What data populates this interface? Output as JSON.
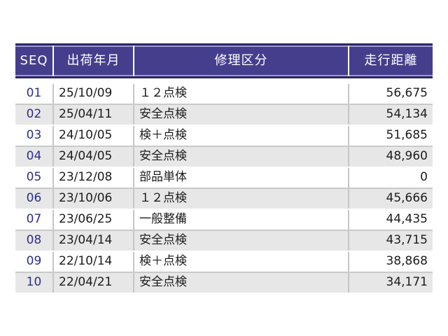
{
  "table": {
    "title": "repair-history",
    "columns": [
      {
        "key": "seq",
        "label": "SEQ"
      },
      {
        "key": "ship_date",
        "label": "出荷年月"
      },
      {
        "key": "repair_type",
        "label": "修理区分"
      },
      {
        "key": "mileage",
        "label": "走行距離"
      }
    ],
    "rows": [
      {
        "seq": "01",
        "ship_date": "25/10/09",
        "repair_type": "１２点検",
        "mileage": "56,675"
      },
      {
        "seq": "02",
        "ship_date": "25/04/11",
        "repair_type": "安全点検",
        "mileage": "54,134"
      },
      {
        "seq": "03",
        "ship_date": "24/10/05",
        "repair_type": "検＋点検",
        "mileage": "51,685"
      },
      {
        "seq": "04",
        "ship_date": "24/04/05",
        "repair_type": "安全点検",
        "mileage": "48,960"
      },
      {
        "seq": "05",
        "ship_date": "23/12/08",
        "repair_type": "部品単体",
        "mileage": "0"
      },
      {
        "seq": "06",
        "ship_date": "23/10/06",
        "repair_type": "１２点検",
        "mileage": "45,666"
      },
      {
        "seq": "07",
        "ship_date": "23/06/25",
        "repair_type": "一般整備",
        "mileage": "44,435"
      },
      {
        "seq": "08",
        "ship_date": "23/04/14",
        "repair_type": "安全点検",
        "mileage": "43,715"
      },
      {
        "seq": "09",
        "ship_date": "22/10/14",
        "repair_type": "検＋点検",
        "mileage": "38,868"
      },
      {
        "seq": "10",
        "ship_date": "22/04/21",
        "repair_type": "安全点検",
        "mileage": "34,171"
      }
    ]
  },
  "colors": {
    "header_background": "#453E8D",
    "header_border_dark": "#2B2664",
    "header_highlight": "#9E99CF",
    "header_text": "#FFFFFF",
    "seq_text": "#2E2E8C",
    "body_text": "#1C1C1C",
    "row_alt_background": "#E7E7E7",
    "row_separator": "#C9C9C9",
    "column_separator": "#C6C6C6",
    "page_background": "#FFFFFF"
  }
}
